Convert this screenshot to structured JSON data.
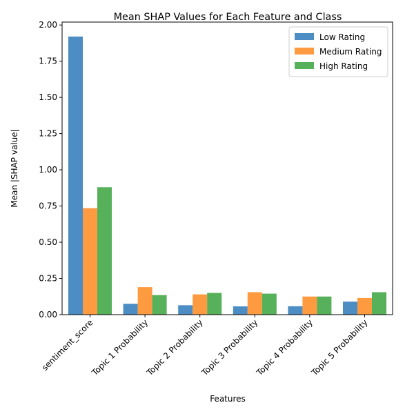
{
  "chart_data": {
    "type": "bar",
    "title": "Mean SHAP Values for Each Feature and Class",
    "xlabel": "Features",
    "ylabel": "Mean |SHAP value|",
    "categories": [
      "sentiment_score",
      "Topic 1 Probability",
      "Topic 2 Probability",
      "Topic 3 Probability",
      "Topic 4 Probability",
      "Topic 5 Probability"
    ],
    "series": [
      {
        "name": "Low Rating",
        "color": "#4c8dc3",
        "values": [
          1.92,
          0.075,
          0.065,
          0.057,
          0.058,
          0.09
        ]
      },
      {
        "name": "Medium Rating",
        "color": "#fe9a40",
        "values": [
          0.735,
          0.19,
          0.14,
          0.155,
          0.125,
          0.115
        ]
      },
      {
        "name": "High Rating",
        "color": "#57b05a",
        "values": [
          0.88,
          0.135,
          0.15,
          0.145,
          0.125,
          0.155
        ]
      }
    ],
    "ylim": [
      0,
      2.02
    ],
    "yticks": [
      "0.00",
      "0.25",
      "0.50",
      "0.75",
      "1.00",
      "1.25",
      "1.50",
      "1.75",
      "2.00"
    ],
    "grid": false,
    "legend_position": "top-right"
  }
}
